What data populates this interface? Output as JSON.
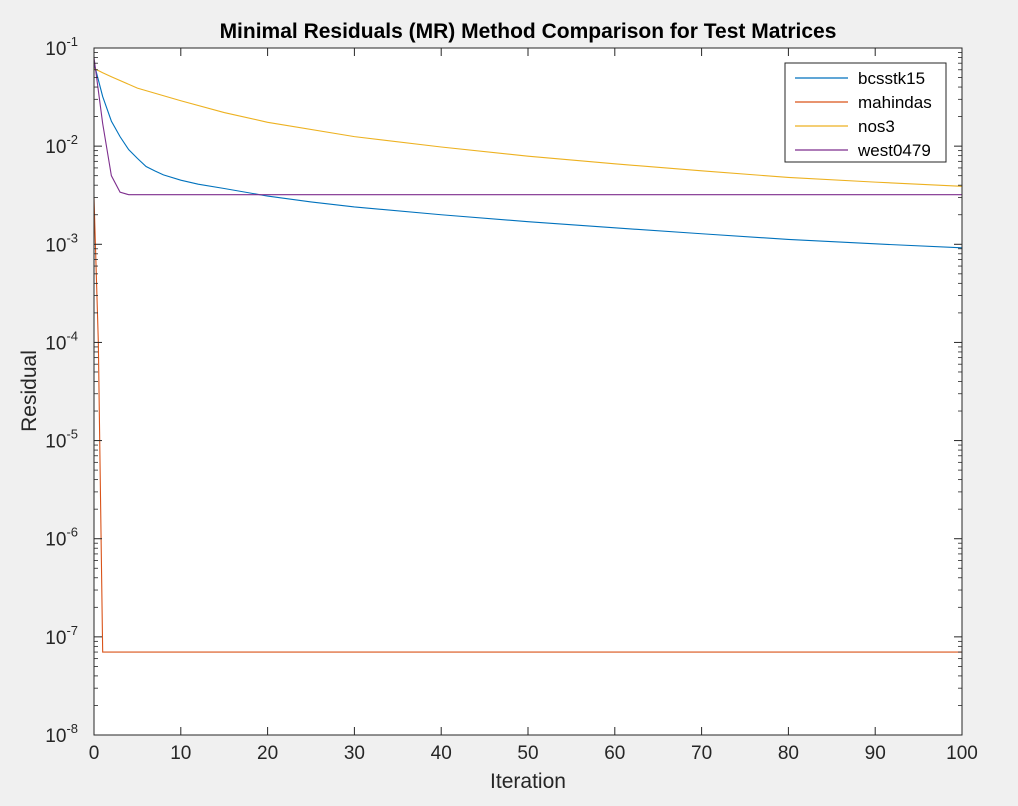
{
  "chart_data": {
    "type": "line",
    "title": "Minimal Residuals (MR) Method Comparison for Test Matrices",
    "xlabel": "Iteration",
    "ylabel": "Residual",
    "xlim": [
      0,
      100
    ],
    "ylim": [
      1e-08,
      0.1
    ],
    "yscale": "log",
    "grid": false,
    "legend_location": "top-right",
    "x_ticks": [
      0,
      10,
      20,
      30,
      40,
      50,
      60,
      70,
      80,
      90,
      100
    ],
    "x_tick_labels": [
      "0",
      "10",
      "20",
      "30",
      "40",
      "50",
      "60",
      "70",
      "80",
      "90",
      "100"
    ],
    "y_ticks": [
      1e-08,
      1e-07,
      1e-06,
      1e-05,
      0.0001,
      0.001,
      0.01,
      0.1
    ],
    "y_tick_labels": [
      {
        "base": "10",
        "exp": "-8"
      },
      {
        "base": "10",
        "exp": "-7"
      },
      {
        "base": "10",
        "exp": "-6"
      },
      {
        "base": "10",
        "exp": "-5"
      },
      {
        "base": "10",
        "exp": "-4"
      },
      {
        "base": "10",
        "exp": "-3"
      },
      {
        "base": "10",
        "exp": "-2"
      },
      {
        "base": "10",
        "exp": "-1"
      }
    ],
    "series": [
      {
        "name": "bcsstk15",
        "color": "#0072BD",
        "x": [
          0,
          1,
          2,
          3,
          4,
          5,
          6,
          7,
          8,
          10,
          12,
          15,
          20,
          25,
          30,
          40,
          50,
          60,
          70,
          80,
          90,
          100
        ],
        "y": [
          0.07,
          0.032,
          0.018,
          0.0125,
          0.0092,
          0.0075,
          0.0062,
          0.0056,
          0.0051,
          0.0045,
          0.0041,
          0.0037,
          0.0031,
          0.0027,
          0.0024,
          0.002,
          0.0017,
          0.00147,
          0.00128,
          0.00112,
          0.00101,
          0.00092
        ]
      },
      {
        "name": "mahindas",
        "color": "#D95319",
        "x": [
          0,
          0.5,
          1,
          2,
          10,
          50,
          100
        ],
        "y": [
          0.003,
          0.0001,
          7e-08,
          7e-08,
          7e-08,
          7e-08,
          7e-08
        ]
      },
      {
        "name": "nos3",
        "color": "#EDB120",
        "x": [
          0,
          1,
          2,
          5,
          10,
          15,
          20,
          30,
          40,
          50,
          60,
          70,
          80,
          90,
          100
        ],
        "y": [
          0.062,
          0.056,
          0.051,
          0.039,
          0.029,
          0.022,
          0.0175,
          0.0125,
          0.0098,
          0.0079,
          0.0066,
          0.0056,
          0.0048,
          0.0043,
          0.0039
        ]
      },
      {
        "name": "west0479",
        "color": "#7E2F8E",
        "x": [
          0,
          1,
          2,
          3,
          4,
          5,
          10,
          50,
          100
        ],
        "y": [
          0.08,
          0.017,
          0.005,
          0.0034,
          0.0032,
          0.0032,
          0.0032,
          0.0032,
          0.0032
        ]
      }
    ]
  }
}
